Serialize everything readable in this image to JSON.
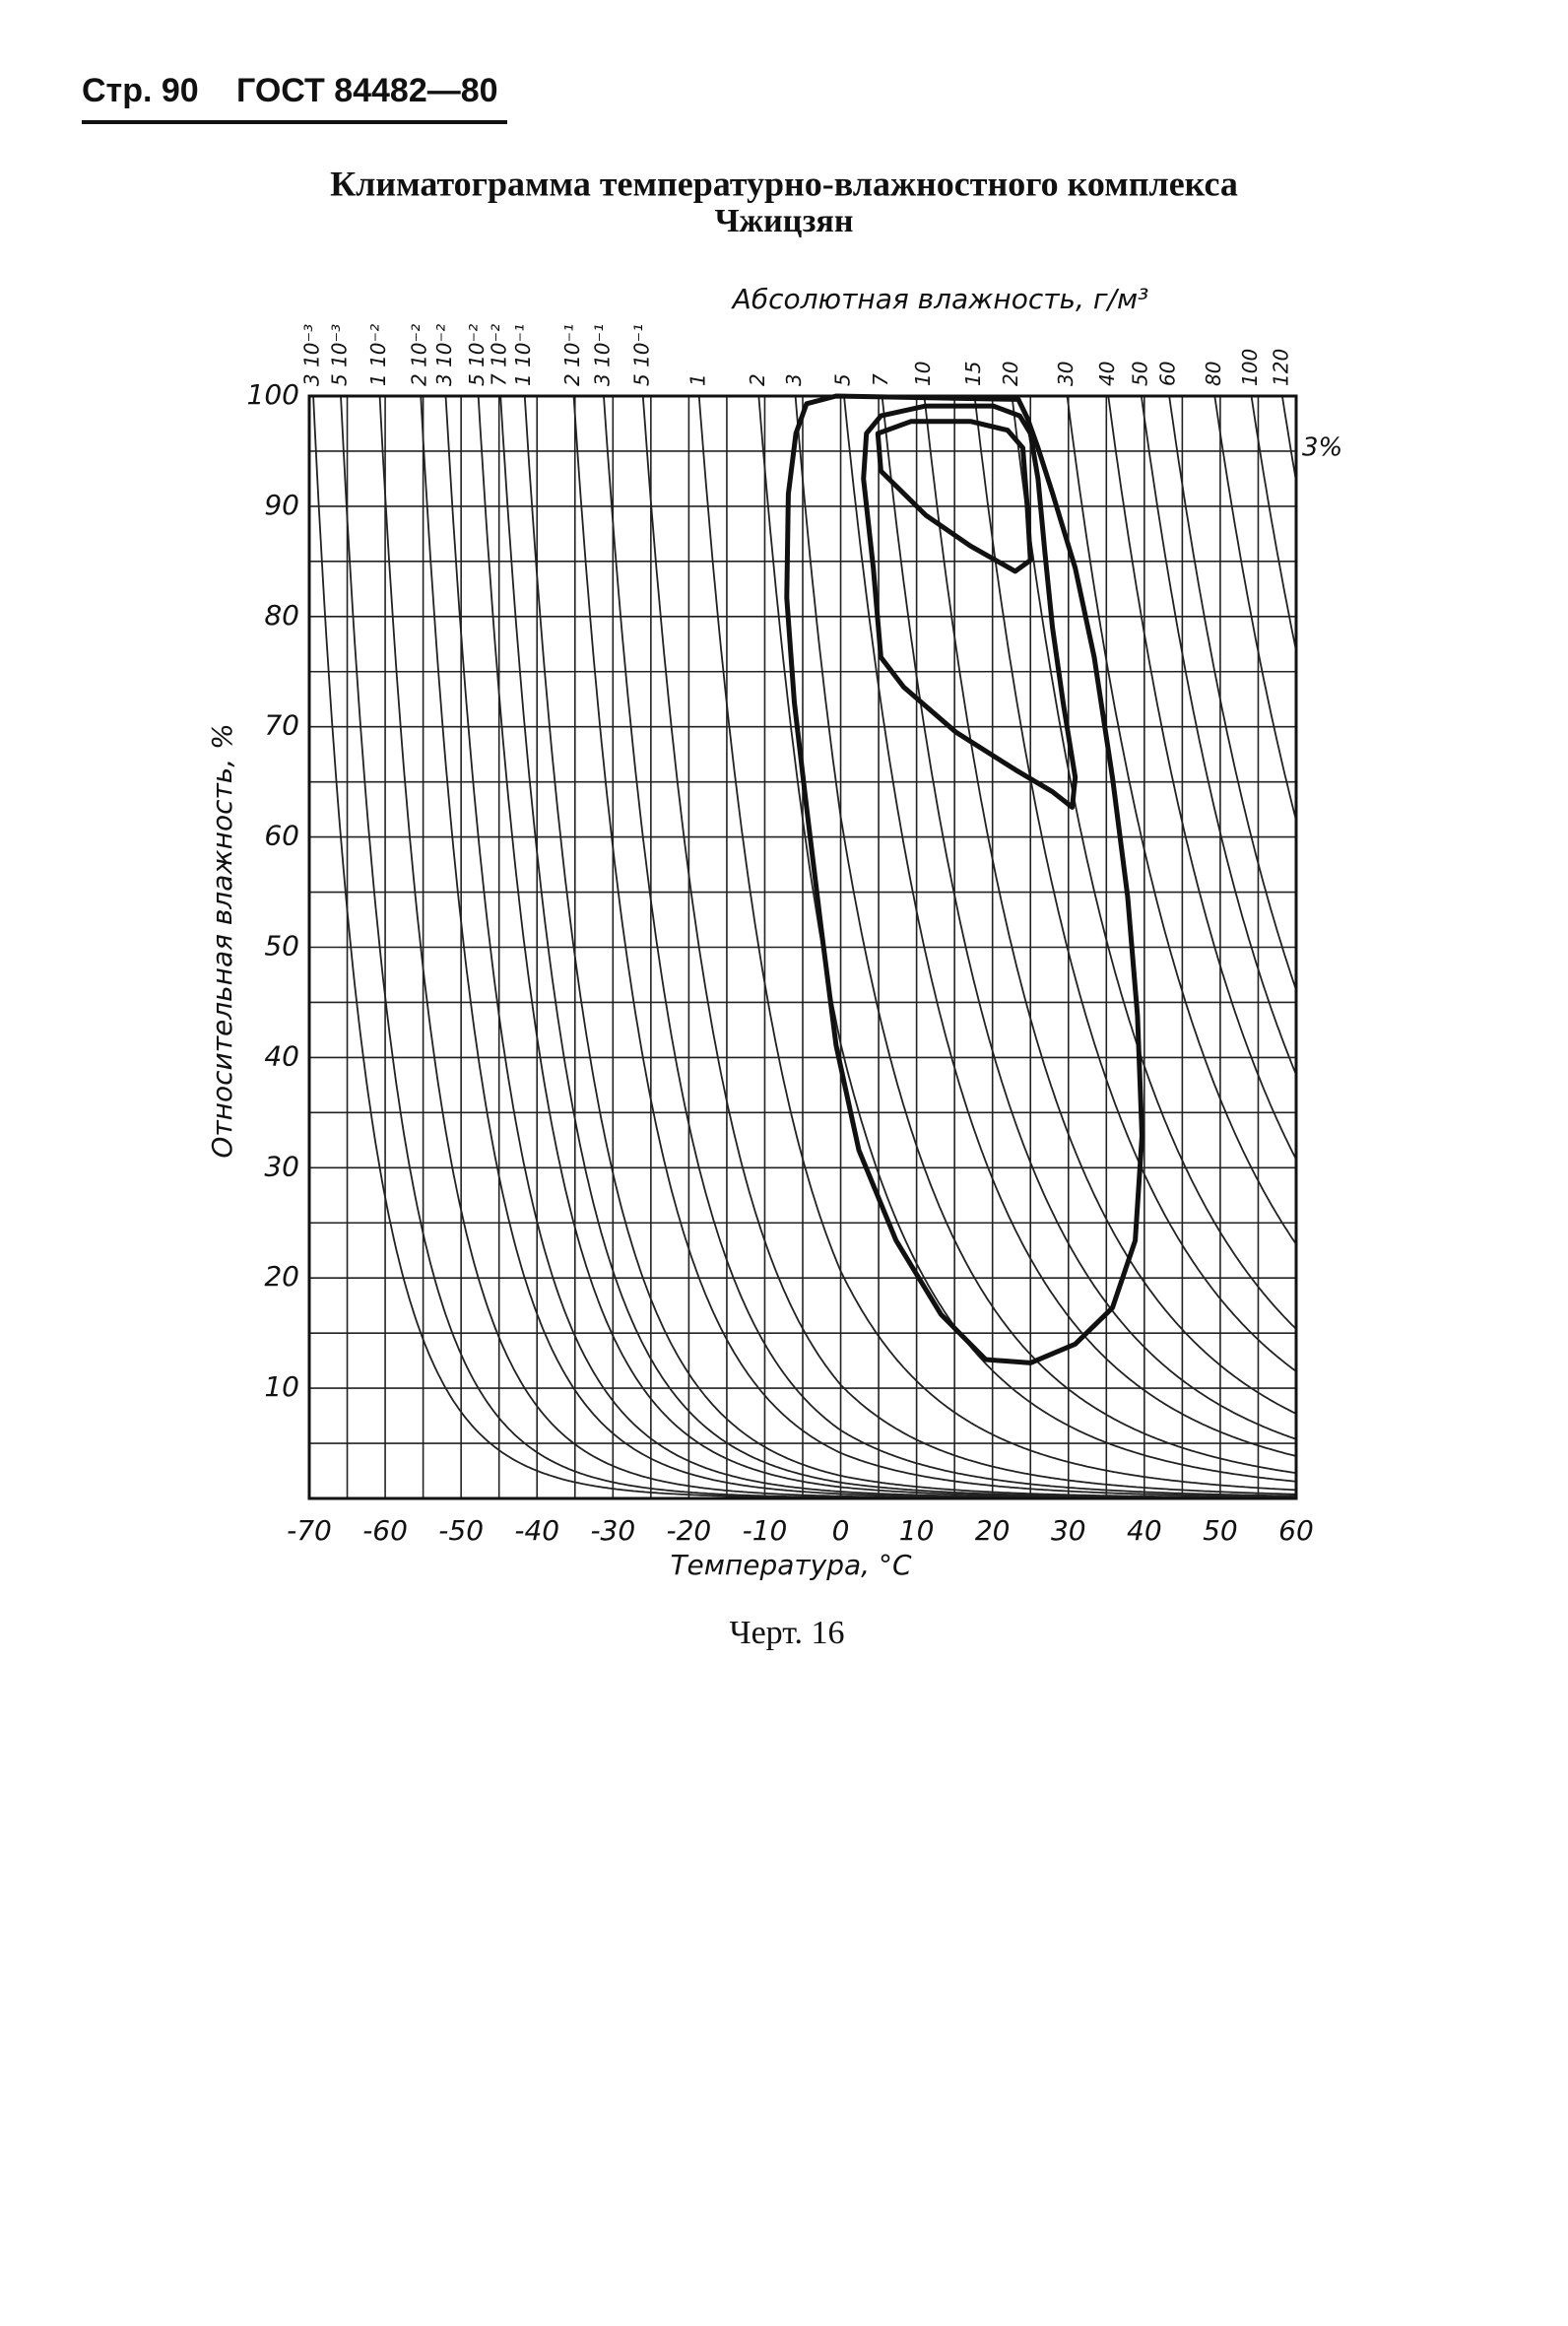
{
  "header": {
    "page": "Стр. 90",
    "doc": "ГОСТ 84482—80"
  },
  "caption": "Черт. 16",
  "chart_data": {
    "type": "climatogram",
    "title": "Климатограмма температурно-влажностного комплекса",
    "subtitle": "Чжицзян",
    "x_label": "Температура, °С",
    "y_label": "Относительная влажность, %",
    "top_label": "Абсолютная влажность, г/м³",
    "annotation": "3%",
    "xlim": [
      -70,
      60
    ],
    "xticks": [
      -70,
      -60,
      -50,
      -40,
      -30,
      -20,
      -10,
      0,
      10,
      20,
      30,
      40,
      50,
      60
    ],
    "ylim": [
      0,
      100
    ],
    "yticks": [
      10,
      20,
      30,
      40,
      50,
      60,
      70,
      80,
      90,
      100
    ],
    "xgrid": [
      -70,
      -65,
      -60,
      -55,
      -50,
      -45,
      -40,
      -35,
      -30,
      -25,
      -20,
      -15,
      -10,
      -5,
      0,
      5,
      10,
      15,
      20,
      25,
      30,
      35,
      40,
      45,
      50,
      55,
      60
    ],
    "ygrid": [
      0,
      5,
      10,
      15,
      20,
      25,
      30,
      35,
      40,
      45,
      50,
      55,
      60,
      65,
      70,
      75,
      80,
      85,
      90,
      95,
      100
    ],
    "isolines": {
      "values": [
        0.003,
        0.005,
        0.01,
        0.02,
        0.03,
        0.05,
        0.07,
        0.1,
        0.2,
        0.3,
        0.5,
        1,
        2,
        3,
        5,
        7,
        10,
        15,
        20,
        30,
        40,
        50,
        60,
        80,
        100,
        120
      ],
      "value_labels": [
        "3 10⁻³",
        "5 10⁻³",
        "1 10⁻²",
        "2 10⁻²",
        "3 10⁻²",
        "5 10⁻²",
        "7 10⁻²",
        "1 10⁻¹",
        "2 10⁻¹",
        "3 10⁻¹",
        "5 10⁻¹",
        "1",
        "2",
        "3",
        "5",
        "7",
        "10",
        "15",
        "20",
        "30",
        "40",
        "50",
        "60",
        "80",
        "100",
        "120"
      ]
    },
    "series": [
      {
        "color": "#111111",
        "x": [
          -5.9,
          -6.9,
          -7.1,
          -6.1,
          -4.5,
          -2.6,
          -0.6,
          2.4,
          7.3,
          13.2,
          19.1,
          25.0,
          30.9,
          35.8,
          38.8,
          39.7,
          39.1,
          37.8,
          35.8,
          33.4,
          30.9,
          27.9,
          26.0,
          24.6,
          23.4,
          -0.6,
          -4.5
        ],
        "y": [
          96.6,
          91.1,
          81.7,
          72.2,
          62.7,
          51.9,
          41.1,
          31.6,
          23.4,
          16.7,
          12.6,
          12.3,
          14.0,
          17.3,
          23.4,
          32.9,
          43.8,
          54.6,
          65.4,
          76.3,
          84.4,
          91.2,
          95.3,
          98.0,
          99.7,
          100,
          99.3
        ]
      },
      {
        "color": "#111111",
        "x": [
          3.4,
          3.0,
          4.3,
          5.3,
          8.3,
          15.2,
          23.0,
          27.9,
          30.5,
          30.9,
          29.3,
          27.9,
          26.9,
          26.0,
          25.0,
          23.6,
          20.1,
          11.2,
          5.3
        ],
        "y": [
          96.6,
          92.5,
          84.4,
          76.3,
          73.6,
          69.5,
          66.1,
          64.1,
          62.7,
          65.4,
          72.2,
          79.0,
          85.8,
          92.5,
          96.6,
          98.2,
          99.1,
          99.1,
          98.2
        ]
      },
      {
        "color": "#111111",
        "x": [
          4.9,
          5.3,
          11.2,
          17.1,
          23.0,
          25.0,
          24.6,
          24.0,
          22.0,
          17.1,
          9.3
        ],
        "y": [
          96.6,
          93.2,
          89.2,
          86.4,
          84.1,
          85.1,
          89.8,
          95.3,
          96.9,
          97.7,
          97.7
        ]
      }
    ]
  }
}
